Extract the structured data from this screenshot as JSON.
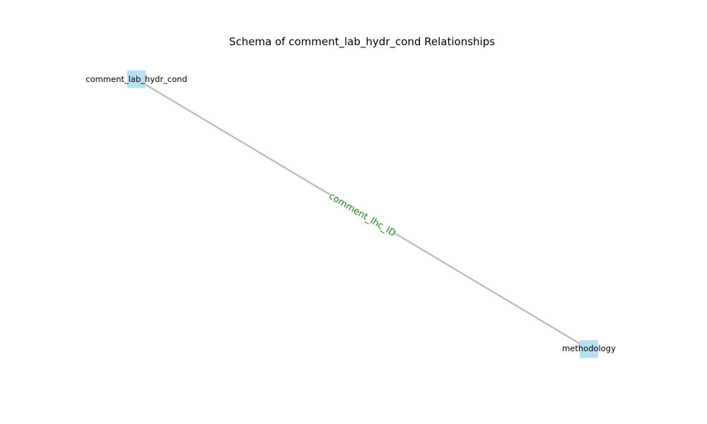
{
  "diagram": {
    "title": "Schema of comment_lab_hydr_cond Relationships",
    "nodes": [
      {
        "id": "comment_lab_hydr_cond",
        "label": "comment_lab_hydr_cond"
      },
      {
        "id": "methodology",
        "label": "methodology"
      }
    ],
    "edges": [
      {
        "from": "comment_lab_hydr_cond",
        "to": "methodology",
        "label": "comment_lhc_ID"
      }
    ],
    "colors": {
      "node_fill": "#b7dff2",
      "edge_stroke": "#bfbfbf",
      "edge_label": "#118811",
      "label_halo": "#ffffff"
    }
  }
}
